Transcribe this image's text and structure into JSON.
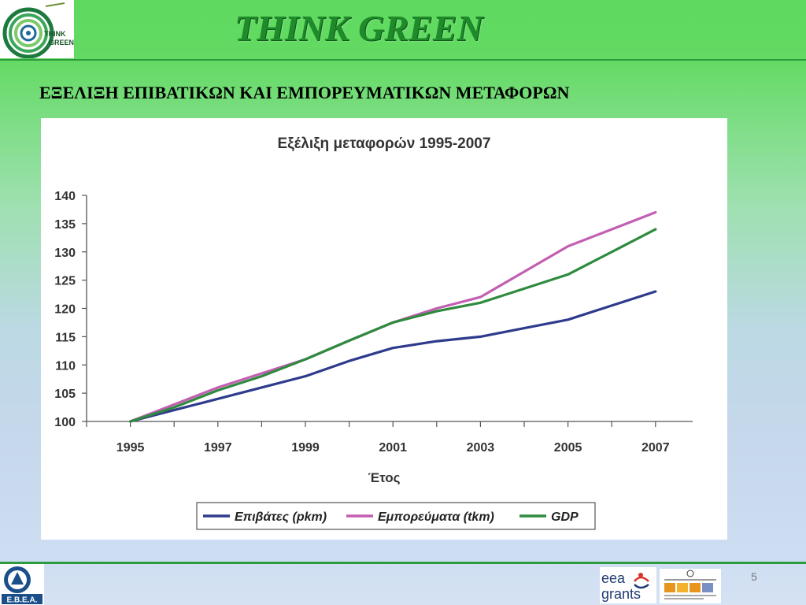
{
  "header": {
    "brand_title": "THINK GREEN",
    "logo_text_line1": "THINK",
    "logo_text_line2": "GREEN"
  },
  "slide": {
    "heading": "ΕΞΕΛΙΞΗ ΕΠΙΒΑΤΙΚΩΝ ΚΑΙ ΕΜΠΟΡΕΥΜΑΤΙΚΩΝ ΜΕΤΑΦΟΡΩΝ",
    "page_number": "5"
  },
  "footer": {
    "ebea_label": "E.B.E.A.",
    "eea_line1": "eea",
    "eea_line2": "grants"
  },
  "colors": {
    "passengers": "#2e3b8c",
    "goods": "#c25fb2",
    "gdp": "#2e8b3e",
    "brand": "#1f8a2a"
  },
  "chart_data": {
    "type": "line",
    "title": "Εξέλιξη μεταφορών 1995-2007",
    "xlabel": "Έτος",
    "ylabel": "",
    "ylim": [
      100,
      140
    ],
    "yticks": [
      100,
      105,
      110,
      115,
      120,
      125,
      130,
      135,
      140
    ],
    "xlim": [
      1995,
      2007
    ],
    "xticks": [
      "1995",
      "1997",
      "1999",
      "2001",
      "2003",
      "2005",
      "2007"
    ],
    "grid": false,
    "legend": "bottom",
    "x": [
      1995,
      1996,
      1997,
      1998,
      1999,
      2000,
      2001,
      2002,
      2003,
      2004,
      2005,
      2006,
      2007
    ],
    "series": [
      {
        "name": "Επιβάτες (pkm)",
        "values": [
          100,
          102,
          104,
          106,
          108,
          110.7,
          113,
          114.2,
          115,
          116.5,
          118,
          120.5,
          123
        ]
      },
      {
        "name": "Εμπορεύματα (tkm)",
        "values": [
          100,
          103,
          106,
          108.5,
          111,
          114.3,
          117.5,
          120,
          122,
          126.5,
          131,
          134,
          137
        ]
      },
      {
        "name": "GDP",
        "values": [
          100,
          102.5,
          105.5,
          108,
          111,
          114.3,
          117.5,
          119.5,
          121,
          123.5,
          126,
          130,
          134
        ]
      }
    ]
  }
}
